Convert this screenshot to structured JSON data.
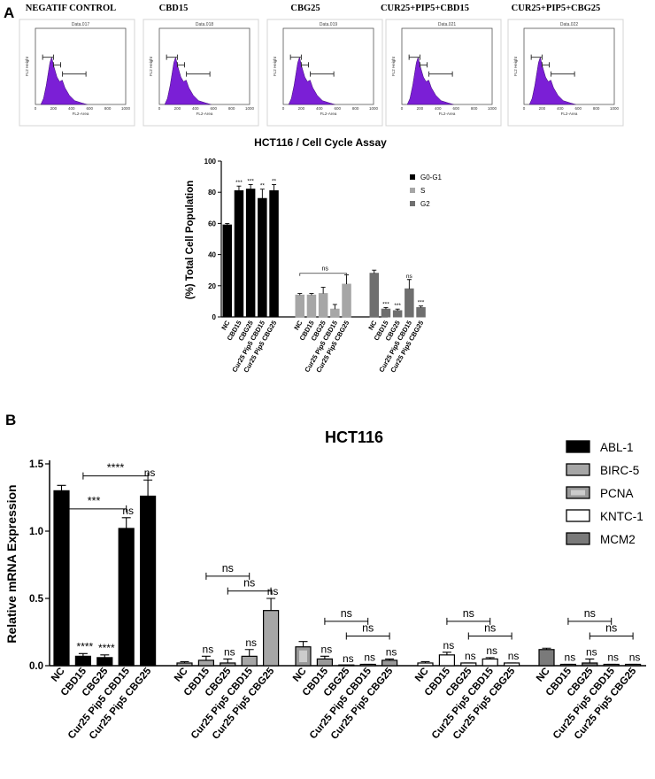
{
  "panel_a": {
    "letter": "A",
    "histograms": [
      {
        "title": "NEGATIF CONTROL",
        "data_label": "Data.017"
      },
      {
        "title": "CBD15",
        "data_label": "Data.018"
      },
      {
        "title": "CBG25",
        "data_label": "Data.019"
      },
      {
        "title": "CUR25+PIP5+CBD15",
        "data_label": "Data.021"
      },
      {
        "title": "CUR25+PIP5+CBG25",
        "data_label": "Data.022"
      }
    ],
    "histogram_axes": {
      "xlabel": "FL2-Area",
      "ylabel": "FL2 Height",
      "xticks": [
        "0",
        "200",
        "400",
        "600",
        "800",
        "1000"
      ]
    },
    "histogram_color": "#7b1fd6"
  },
  "panel_b": {
    "letter": "B"
  },
  "chart_data": [
    {
      "type": "bar",
      "title": "HCT116 / Cell Cycle Assay",
      "ylabel": "(%) Total Cell Population",
      "ylim": [
        0,
        100
      ],
      "yticks": [
        "0",
        "20",
        "40",
        "60",
        "80",
        "100"
      ],
      "categories": [
        "NC",
        "CBD15",
        "CBG25",
        "Cur25 Pip5 CBD15",
        "Cur25 Pip5 CBG25"
      ],
      "series": [
        {
          "name": "G0-G1",
          "color": "#000000",
          "values": [
            59,
            81,
            82,
            76,
            81
          ],
          "errors": [
            1,
            3,
            3,
            6,
            4
          ],
          "annotations": [
            "",
            "***",
            "***",
            "**",
            "**"
          ]
        },
        {
          "name": "S",
          "color": "#a6a6a6",
          "values": [
            14,
            14,
            15,
            5,
            21
          ],
          "errors": [
            1,
            1,
            4,
            3,
            6
          ],
          "annotations": [
            "",
            "",
            "",
            "",
            ""
          ],
          "bracket": "ns"
        },
        {
          "name": "G2",
          "color": "#6f6f6f",
          "values": [
            28,
            5,
            4,
            18,
            6
          ],
          "errors": [
            2,
            1,
            1,
            6,
            1
          ],
          "annotations": [
            "",
            "***",
            "***",
            "ns",
            "***"
          ]
        }
      ],
      "legend": "right"
    },
    {
      "type": "bar",
      "title": "HCT116",
      "ylabel": "Relative  mRNA  Expression",
      "ylim": [
        0,
        1.5
      ],
      "yticks": [
        "0.0",
        "0.5",
        "1.0",
        "1.5"
      ],
      "categories": [
        "NC",
        "CBD15",
        "CBG25",
        "Cur25 Pip5 CBD15",
        "Cur25 Pip5 CBG25"
      ],
      "series": [
        {
          "name": "ABL-1",
          "values": [
            1.3,
            0.07,
            0.06,
            1.02,
            1.26
          ],
          "errors": [
            0.04,
            0.02,
            0.02,
            0.08,
            0.12
          ],
          "annotations": [
            "",
            "****",
            "****",
            "ns",
            "ns"
          ],
          "brackets": [
            {
              "from": 0,
              "to": 3,
              "label": "***"
            },
            {
              "from": 1,
              "to": 4,
              "label": "****"
            }
          ]
        },
        {
          "name": "BIRC-5",
          "values": [
            0.02,
            0.04,
            0.02,
            0.07,
            0.41
          ],
          "errors": [
            0.01,
            0.03,
            0.03,
            0.05,
            0.09
          ],
          "annotations": [
            "",
            "ns",
            "ns",
            "ns",
            "ns"
          ],
          "brackets": [
            {
              "from": 1,
              "to": 3,
              "label": "ns"
            },
            {
              "from": 2,
              "to": 4,
              "label": "ns"
            }
          ]
        },
        {
          "name": "PCNA",
          "values": [
            0.14,
            0.05,
            0.0,
            0.01,
            0.04
          ],
          "errors": [
            0.04,
            0.02,
            0.0,
            0.0,
            0.01
          ],
          "annotations": [
            "",
            "ns",
            "ns",
            "ns",
            "ns"
          ],
          "brackets": [
            {
              "from": 1,
              "to": 3,
              "label": "ns"
            },
            {
              "from": 2,
              "to": 4,
              "label": "ns"
            }
          ]
        },
        {
          "name": "KNTC-1",
          "values": [
            0.02,
            0.08,
            0.02,
            0.05,
            0.02
          ],
          "errors": [
            0.01,
            0.02,
            0.0,
            0.01,
            0.0
          ],
          "annotations": [
            "",
            "ns",
            "ns",
            "ns",
            "ns"
          ],
          "brackets": [
            {
              "from": 1,
              "to": 3,
              "label": "ns"
            },
            {
              "from": 2,
              "to": 4,
              "label": "ns"
            }
          ]
        },
        {
          "name": "MCM2",
          "values": [
            0.12,
            0.01,
            0.02,
            0.01,
            0.01
          ],
          "errors": [
            0.01,
            0.0,
            0.03,
            0.0,
            0.0
          ],
          "annotations": [
            "",
            "ns",
            "ns",
            "ns",
            "ns"
          ],
          "brackets": [
            {
              "from": 1,
              "to": 3,
              "label": "ns"
            },
            {
              "from": 2,
              "to": 4,
              "label": "ns"
            }
          ]
        }
      ],
      "legend": "top-right",
      "styles": [
        {
          "fill": "#000000",
          "inner": ""
        },
        {
          "fill": "#a6a6a6",
          "inner": ""
        },
        {
          "fill": "#999999",
          "inner": "#cccccc"
        },
        {
          "fill": "#ffffff",
          "inner": ""
        },
        {
          "fill": "#7a7a7a",
          "inner": ""
        }
      ]
    }
  ]
}
